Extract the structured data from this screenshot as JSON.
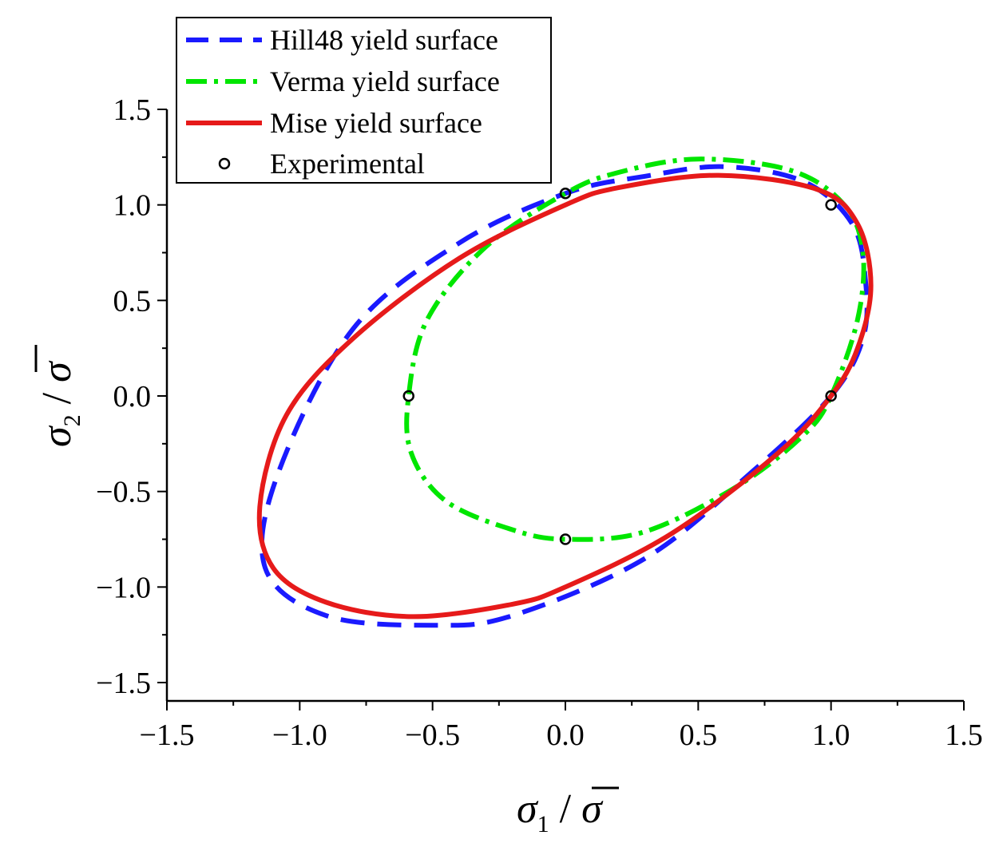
{
  "chart_data": {
    "type": "line",
    "title": "",
    "xlabel": {
      "symbol": "σ",
      "subscript": "1",
      "slash": " / ",
      "bar": "σ"
    },
    "ylabel": {
      "symbol": "σ",
      "subscript": "2",
      "slash": " / ",
      "bar": "σ"
    },
    "xlim": [
      -1.5,
      1.5
    ],
    "ylim": [
      -1.6,
      1.6
    ],
    "xticks": [
      -1.5,
      -1.0,
      -0.5,
      0.0,
      0.5,
      1.0,
      1.5
    ],
    "yticks": [
      -1.5,
      -1.0,
      -0.5,
      0.0,
      0.5,
      1.0,
      1.5
    ],
    "xtick_labels": [
      "−1.5",
      "−1.0",
      "−0.5",
      "0.0",
      "0.5",
      "1.0",
      "1.5"
    ],
    "ytick_labels": [
      "−1.5",
      "−1.0",
      "−0.5",
      "0.0",
      "0.5",
      "1.0",
      "1.5"
    ],
    "legend_position": "top-left",
    "series": [
      {
        "name": "Hill48 yield surface",
        "style": "dashed",
        "color": "#1a1aff",
        "x": [
          1.0,
          1.12,
          1.13,
          1.08,
          0.9,
          0.6,
          0.3,
          0.0,
          -0.4,
          -0.8,
          -1.08,
          -1.13,
          -0.9,
          -0.5,
          -0.2,
          0.3,
          0.7,
          1.0
        ],
        "y": [
          0.0,
          0.3,
          0.6,
          0.9,
          1.12,
          1.2,
          1.15,
          1.06,
          0.8,
          0.35,
          -0.4,
          -0.9,
          -1.15,
          -1.2,
          -1.15,
          -0.85,
          -0.4,
          0.0
        ]
      },
      {
        "name": "Verma yield surface",
        "style": "dashdot",
        "color": "#00e600",
        "x": [
          1.0,
          1.1,
          1.12,
          1.05,
          0.85,
          0.5,
          0.2,
          0.0,
          -0.3,
          -0.52,
          -0.59,
          -0.58,
          -0.45,
          -0.2,
          0.0,
          0.3,
          0.65,
          0.9,
          1.0
        ],
        "y": [
          0.0,
          0.4,
          0.75,
          1.0,
          1.18,
          1.24,
          1.17,
          1.06,
          0.78,
          0.4,
          0.0,
          -0.3,
          -0.55,
          -0.7,
          -0.75,
          -0.71,
          -0.47,
          -0.2,
          0.0
        ]
      },
      {
        "name": "Mise yield surface",
        "style": "solid",
        "color": "#e61a1a",
        "x": [
          1.0,
          1.1,
          1.15,
          1.1,
          0.95,
          0.577,
          0.2,
          0.0,
          -0.4,
          -0.8,
          -1.05,
          -1.15,
          -1.1,
          -0.9,
          -0.577,
          -0.2,
          0.0,
          0.4,
          0.8,
          1.0
        ],
        "y": [
          0.0,
          0.25,
          0.577,
          0.9,
          1.08,
          1.155,
          1.09,
          1.0,
          0.72,
          0.3,
          -0.1,
          -0.577,
          -0.9,
          -1.08,
          -1.155,
          -1.09,
          -1.0,
          -0.72,
          -0.3,
          0.0
        ]
      }
    ],
    "experimental": {
      "name": "Experimental",
      "x": [
        0.0,
        1.0,
        1.0,
        -0.59,
        0.0
      ],
      "y": [
        1.06,
        1.0,
        0.0,
        0.0,
        -0.75
      ]
    }
  }
}
